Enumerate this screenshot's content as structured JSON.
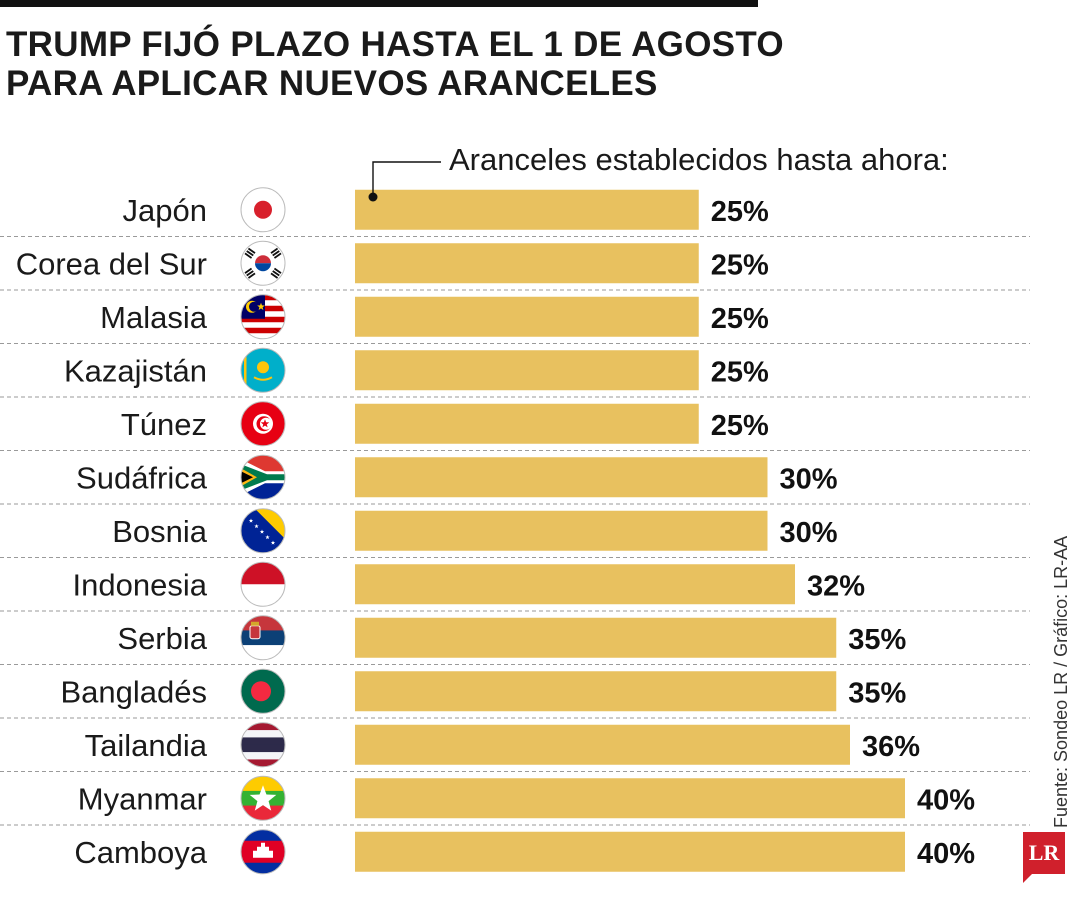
{
  "header": {
    "title_line1": "TRUMP FIJÓ PLAZO HASTA EL 1 DE AGOSTO",
    "title_line2": "PARA APLICAR NUEVOS ARANCELES"
  },
  "annotation": "Aranceles establecidos hasta ahora:",
  "source": "Fuente: Sondeo LR / Gráfico: LR-AA",
  "logo": "LR",
  "colors": {
    "bar": "#e8c15f",
    "grid": "#9a9a9a",
    "text": "#1a1a1a",
    "brand": "#d0202c"
  },
  "chart_data": {
    "type": "bar",
    "orientation": "horizontal",
    "title": "Aranceles establecidos hasta ahora:",
    "categories": [
      "Japón",
      "Corea del Sur",
      "Malasia",
      "Kazajistán",
      "Túnez",
      "Sudáfrica",
      "Bosnia",
      "Indonesia",
      "Serbia",
      "Bangladés",
      "Tailandia",
      "Myanmar",
      "Camboya"
    ],
    "values": [
      25,
      25,
      25,
      25,
      25,
      30,
      30,
      32,
      35,
      35,
      36,
      40,
      40
    ],
    "value_labels": [
      "25%",
      "25%",
      "25%",
      "25%",
      "25%",
      "30%",
      "30%",
      "32%",
      "35%",
      "35%",
      "36%",
      "40%",
      "40%"
    ],
    "unit": "%",
    "xlim": [
      0,
      40
    ],
    "flags": [
      "japan-flag",
      "south-korea-flag",
      "malaysia-flag",
      "kazakhstan-flag",
      "tunisia-flag",
      "south-africa-flag",
      "bosnia-flag",
      "indonesia-flag",
      "serbia-flag",
      "bangladesh-flag",
      "thailand-flag",
      "myanmar-flag",
      "cambodia-flag"
    ]
  }
}
